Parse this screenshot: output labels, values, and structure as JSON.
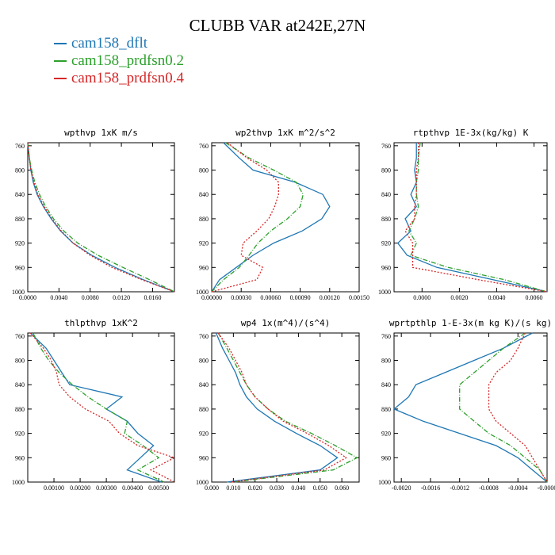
{
  "title": "CLUBB VAR at242E,27N",
  "legend": [
    {
      "label": "cam158_dflt",
      "color": "#1f77b4",
      "dash": "solid"
    },
    {
      "label": "cam158_prdfsn0.2",
      "color": "#2ca02c",
      "dash": "dashdot"
    },
    {
      "label": "cam158_prdfsn0.4",
      "color": "#d62728",
      "dash": "dotted"
    }
  ],
  "chart_data": [
    {
      "type": "line",
      "title": "wpthvp  1xK m/s",
      "xlim": [
        0,
        0.0188
      ],
      "ylim": [
        1000,
        755
      ],
      "xticks": [
        0,
        0.004,
        0.008,
        0.012,
        0.016
      ],
      "xtick_labels": [
        "0.0000",
        "0.0040",
        "0.0080",
        "0.0120",
        "0.0160"
      ],
      "yticks": [
        760,
        800,
        840,
        880,
        920,
        960,
        1000
      ],
      "y": [
        755,
        780,
        800,
        820,
        840,
        860,
        880,
        900,
        920,
        940,
        960,
        980,
        1000
      ],
      "series": [
        {
          "name": "cam158_dflt",
          "x": [
            0.0,
            0.0002,
            0.0004,
            0.0007,
            0.0012,
            0.002,
            0.003,
            0.0042,
            0.0058,
            0.0082,
            0.0112,
            0.0148,
            0.0188
          ]
        },
        {
          "name": "cam158_prdfsn0.2",
          "x": [
            0.0,
            0.0002,
            0.0005,
            0.0009,
            0.0015,
            0.0023,
            0.0033,
            0.0046,
            0.0064,
            0.009,
            0.0122,
            0.0156,
            0.0188
          ]
        },
        {
          "name": "cam158_prdfsn0.4",
          "x": [
            0.0,
            0.0002,
            0.0004,
            0.0008,
            0.0013,
            0.0021,
            0.0031,
            0.0043,
            0.0058,
            0.008,
            0.0108,
            0.0146,
            0.0188
          ]
        }
      ]
    },
    {
      "type": "line",
      "title": "wp2thvp  1xK m^2/s^2",
      "xlim": [
        0,
        0.0015
      ],
      "ylim": [
        1000,
        755
      ],
      "xticks": [
        0,
        0.0003,
        0.0006,
        0.0009,
        0.0012,
        0.0015
      ],
      "xtick_labels": [
        "0.00000",
        "0.00030",
        "0.00060",
        "0.00090",
        "0.00120",
        "0.00150"
      ],
      "yticks": [
        760,
        800,
        840,
        880,
        920,
        960,
        1000
      ],
      "y": [
        755,
        780,
        800,
        820,
        840,
        860,
        880,
        900,
        920,
        940,
        960,
        980,
        1000
      ],
      "series": [
        {
          "name": "cam158_dflt",
          "x": [
            0.00012,
            0.00028,
            0.00042,
            0.00085,
            0.00113,
            0.0012,
            0.00112,
            0.00092,
            0.00063,
            0.00042,
            0.00025,
            8e-05,
            0.0
          ]
        },
        {
          "name": "cam158_prdfsn0.2",
          "x": [
            0.00014,
            0.00038,
            0.00063,
            0.00086,
            0.00093,
            0.0009,
            0.00077,
            0.0006,
            0.00047,
            0.00038,
            0.00028,
            0.00012,
            0.0
          ]
        },
        {
          "name": "cam158_prdfsn0.4",
          "x": [
            0.00016,
            0.00036,
            0.00056,
            0.00068,
            0.00068,
            0.00064,
            0.00058,
            0.00046,
            0.00032,
            0.0003,
            0.00052,
            0.00046,
            0.0
          ]
        }
      ]
    },
    {
      "type": "line",
      "title": "rtpthvp  1E-3x(kg/kg) K",
      "xlim": [
        -0.0015,
        0.0067
      ],
      "ylim": [
        1000,
        755
      ],
      "xticks": [
        0,
        0.002,
        0.004,
        0.006
      ],
      "xtick_labels": [
        "0.0000",
        "0.0020",
        "0.0040",
        "0.0060"
      ],
      "yticks": [
        760,
        800,
        840,
        880,
        920,
        960,
        1000
      ],
      "y": [
        755,
        780,
        800,
        820,
        840,
        860,
        880,
        900,
        920,
        940,
        960,
        980,
        1000
      ],
      "series": [
        {
          "name": "cam158_dflt",
          "x": [
            -0.0003,
            -0.0003,
            -0.0004,
            -0.0003,
            -0.0006,
            -0.0003,
            -0.0009,
            -0.0006,
            -0.0013,
            -0.0008,
            0.0008,
            0.0038,
            0.0067
          ]
        },
        {
          "name": "cam158_prdfsn0.2",
          "x": [
            -0.0001,
            -0.0002,
            -0.0002,
            -0.0003,
            -0.0003,
            -0.0002,
            -0.0004,
            -0.0007,
            -0.0003,
            -0.0006,
            0.0014,
            0.0044,
            0.0067
          ]
        },
        {
          "name": "cam158_prdfsn0.4",
          "x": [
            -0.0002,
            -0.0002,
            -0.0003,
            -0.0003,
            -0.0003,
            -0.0004,
            -0.0004,
            -0.0009,
            -0.0005,
            -0.0005,
            -0.0005,
            0.003,
            0.0067
          ]
        }
      ]
    },
    {
      "type": "line",
      "title": "thlpthvp  1xK^2",
      "xlim": [
        0,
        0.0056
      ],
      "ylim": [
        1000,
        755
      ],
      "xticks": [
        0.001,
        0.002,
        0.003,
        0.004,
        0.005
      ],
      "xtick_labels": [
        "0.00100",
        "0.00200",
        "0.00300",
        "0.00400",
        "0.00500"
      ],
      "yticks": [
        760,
        800,
        840,
        880,
        920,
        960,
        1000
      ],
      "y": [
        755,
        780,
        800,
        820,
        840,
        860,
        880,
        900,
        920,
        940,
        960,
        980,
        1000
      ],
      "series": [
        {
          "name": "cam158_dflt",
          "x": [
            0.0001,
            0.0007,
            0.001,
            0.0013,
            0.0016,
            0.0036,
            0.003,
            0.0038,
            0.0042,
            0.0048,
            0.0043,
            0.0038,
            0.0051
          ]
        },
        {
          "name": "cam158_prdfsn0.2",
          "x": [
            0.0002,
            0.0005,
            0.0008,
            0.0012,
            0.0017,
            0.0023,
            0.003,
            0.0038,
            0.0037,
            0.0044,
            0.005,
            0.0042,
            0.0052
          ]
        },
        {
          "name": "cam158_prdfsn0.4",
          "x": [
            0.0001,
            0.0006,
            0.0009,
            0.0011,
            0.0012,
            0.0016,
            0.0022,
            0.0031,
            0.0035,
            0.0042,
            0.0056,
            0.0047,
            0.0056
          ]
        }
      ]
    },
    {
      "type": "line",
      "title": "wp4  1x(m^4)/(s^4)",
      "xlim": [
        0,
        0.068
      ],
      "ylim": [
        1000,
        755
      ],
      "xticks": [
        0,
        0.01,
        0.02,
        0.03,
        0.04,
        0.05,
        0.06
      ],
      "xtick_labels": [
        "0.000",
        "0.010",
        "0.020",
        "0.030",
        "0.040",
        "0.050",
        "0.060"
      ],
      "yticks": [
        760,
        800,
        840,
        880,
        920,
        960,
        1000
      ],
      "y": [
        755,
        780,
        800,
        820,
        840,
        860,
        880,
        900,
        920,
        940,
        960,
        980,
        1000
      ],
      "series": [
        {
          "name": "cam158_dflt",
          "x": [
            0.002,
            0.005,
            0.008,
            0.011,
            0.013,
            0.016,
            0.021,
            0.029,
            0.039,
            0.05,
            0.058,
            0.05,
            0.007
          ]
        },
        {
          "name": "cam158_prdfsn0.2",
          "x": [
            0.003,
            0.007,
            0.01,
            0.013,
            0.016,
            0.02,
            0.026,
            0.034,
            0.046,
            0.057,
            0.067,
            0.056,
            0.01
          ]
        },
        {
          "name": "cam158_prdfsn0.4",
          "x": [
            0.003,
            0.008,
            0.011,
            0.014,
            0.016,
            0.02,
            0.026,
            0.033,
            0.044,
            0.054,
            0.062,
            0.052,
            0.009
          ]
        }
      ]
    },
    {
      "type": "line",
      "title": "wprtpthlp  1-E-3x(m kg K)/(s kg)",
      "xlim": [
        -0.0021,
        0.0
      ],
      "ylim": [
        1000,
        755
      ],
      "xticks": [
        -0.002,
        -0.0016,
        -0.0012,
        -0.0008,
        -0.0004,
        0
      ],
      "xtick_labels": [
        "-0.0020",
        "-0.0016",
        "-0.0012",
        "-0.0008",
        "-0.0004",
        "-0.0000"
      ],
      "yticks": [
        760,
        800,
        840,
        880,
        920,
        960,
        1000
      ],
      "y": [
        755,
        780,
        800,
        820,
        840,
        860,
        880,
        900,
        920,
        940,
        960,
        980,
        1000
      ],
      "series": [
        {
          "name": "cam158_dflt",
          "x": [
            -0.0002,
            -0.0006,
            -0.001,
            -0.0014,
            -0.0018,
            -0.0019,
            -0.0021,
            -0.0017,
            -0.0012,
            -0.0007,
            -0.0004,
            -0.0002,
            0.0
          ]
        },
        {
          "name": "cam158_prdfsn0.2",
          "x": [
            -0.0003,
            -0.0006,
            -0.0008,
            -0.001,
            -0.0012,
            -0.0012,
            -0.0012,
            -0.001,
            -0.0008,
            -0.0005,
            -0.0003,
            -0.0001,
            0.0
          ]
        },
        {
          "name": "cam158_prdfsn0.4",
          "x": [
            -0.0003,
            -0.0004,
            -0.0005,
            -0.0007,
            -0.0008,
            -0.0008,
            -0.0008,
            -0.0007,
            -0.0005,
            -0.0003,
            -0.0002,
            -0.0001,
            0.0
          ]
        }
      ]
    }
  ]
}
